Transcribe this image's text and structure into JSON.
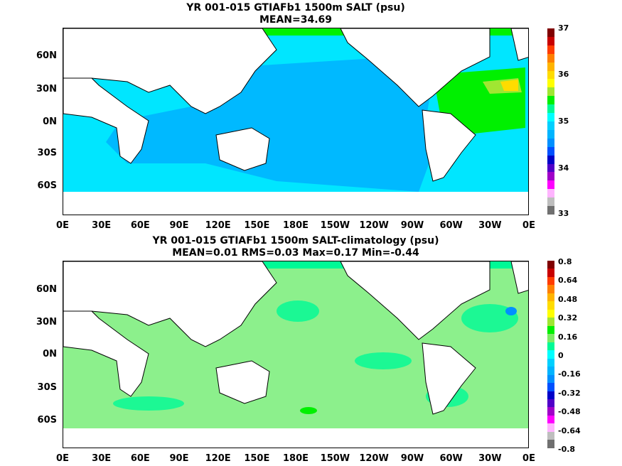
{
  "panels": [
    {
      "title1": "YR 001-015 GTIAFb1 1500m SALT (psu)",
      "title2": "MEAN=34.69",
      "colorbar_labels": [
        "37",
        "36",
        "35",
        "34",
        "33"
      ],
      "colorbar_colors": [
        "#800000",
        "#c80000",
        "#ff3c00",
        "#ff8000",
        "#ffb400",
        "#ffdc00",
        "#ffff00",
        "#a0e632",
        "#00f000",
        "#00fa96",
        "#00ffff",
        "#00d0ff",
        "#00b4ff",
        "#0090ff",
        "#0050ff",
        "#0000c8",
        "#5000c8",
        "#a000c8",
        "#ff00ff",
        "#ffb4ff",
        "#bebebe",
        "#707070"
      ],
      "ocean_color": "#00b9ff",
      "southern_color": "#00e6ff"
    },
    {
      "title1": "YR 001-015 GTIAFb1 1500m SALT-climatology (psu)",
      "title2": "MEAN=0.01   RMS=0.03   Max=0.17   Min=-0.44",
      "colorbar_labels": [
        "0.8",
        "0.64",
        "0.48",
        "0.32",
        "0.16",
        "0",
        "-0.16",
        "-0.32",
        "-0.48",
        "-0.64",
        "-0.8"
      ],
      "colorbar_colors": [
        "#800000",
        "#c80000",
        "#ff3c00",
        "#ff8000",
        "#ffb400",
        "#ffdc00",
        "#ffff00",
        "#a0e632",
        "#00f000",
        "#7deb64",
        "#00fa96",
        "#00ffff",
        "#00d0ff",
        "#00b4ff",
        "#0090ff",
        "#0050ff",
        "#0000c8",
        "#5000c8",
        "#a000c8",
        "#ff00ff",
        "#ffb4ff",
        "#bebebe",
        "#707070"
      ],
      "ocean_color": "#8cf08c"
    }
  ],
  "y_labels": [
    "60N",
    "30N",
    "0N",
    "30S",
    "60S"
  ],
  "x_labels": [
    "0E",
    "30E",
    "60E",
    "90E",
    "120E",
    "150E",
    "180E",
    "150W",
    "120W",
    "90W",
    "60W",
    "30W",
    "0E"
  ]
}
